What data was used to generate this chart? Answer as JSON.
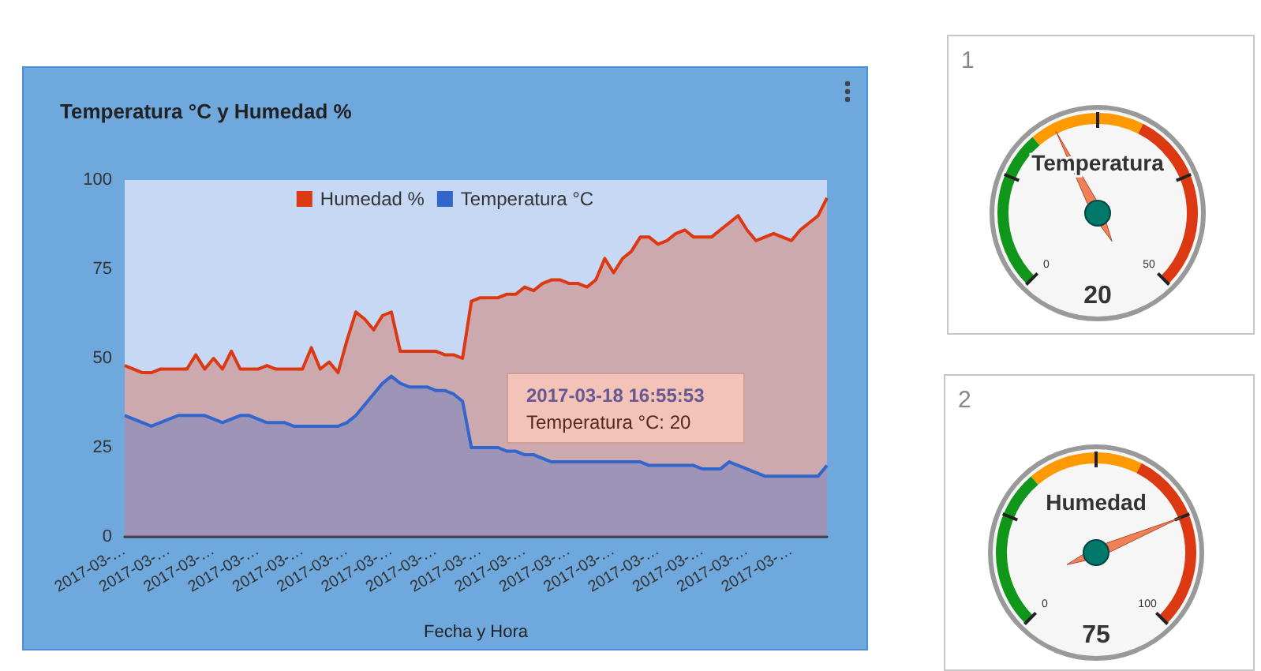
{
  "chart_data": [
    {
      "type": "area",
      "title": "Temperatura °C y Humedad %",
      "xlabel": "Fecha y Hora",
      "categories": [
        "2017-03-…",
        null,
        null,
        null,
        null,
        "2017-03-…",
        null,
        null,
        null,
        null,
        "2017-03-…",
        null,
        null,
        null,
        null,
        "2017-03-…",
        null,
        null,
        null,
        null,
        "2017-03-…",
        null,
        null,
        null,
        null,
        "2017-03-…",
        null,
        null,
        null,
        null,
        "2017-03-…",
        null,
        null,
        null,
        null,
        "2017-03-…",
        null,
        null,
        null,
        null,
        "2017-03-…",
        null,
        null,
        null,
        null,
        "2017-03-…",
        null,
        null,
        null,
        null,
        "2017-03-…",
        null,
        null,
        null,
        null,
        "2017-03-…",
        null,
        null,
        null,
        null,
        "2017-03-…",
        null,
        null,
        null,
        null,
        "2017-03-…",
        null,
        null,
        null,
        null,
        "2017-03-…",
        null,
        null,
        null,
        null,
        "2017-03-…",
        null,
        null,
        null,
        null
      ],
      "series": [
        {
          "name": "Humedad %",
          "color": "#dc3912",
          "values": [
            48,
            47,
            46,
            46,
            47,
            47,
            47,
            47,
            51,
            47,
            50,
            47,
            52,
            47,
            47,
            47,
            48,
            47,
            47,
            47,
            47,
            53,
            47,
            49,
            46,
            55,
            63,
            61,
            58,
            62,
            63,
            52,
            52,
            52,
            52,
            52,
            51,
            51,
            50,
            66,
            67,
            67,
            67,
            68,
            68,
            70,
            69,
            71,
            72,
            72,
            71,
            71,
            70,
            72,
            78,
            74,
            78,
            80,
            84,
            84,
            82,
            83,
            85,
            86,
            84,
            84,
            84,
            86,
            88,
            90,
            86,
            83,
            84,
            85,
            84,
            83,
            86,
            88,
            90,
            95
          ]
        },
        {
          "name": "Temperatura °C",
          "color": "#3366cc",
          "values": [
            34,
            33,
            32,
            31,
            32,
            33,
            34,
            34,
            34,
            34,
            33,
            32,
            33,
            34,
            34,
            33,
            32,
            32,
            32,
            31,
            31,
            31,
            31,
            31,
            31,
            32,
            34,
            37,
            40,
            43,
            45,
            43,
            42,
            42,
            42,
            41,
            41,
            40,
            38,
            25,
            25,
            25,
            25,
            24,
            24,
            23,
            23,
            22,
            21,
            21,
            21,
            21,
            21,
            21,
            21,
            21,
            21,
            21,
            21,
            20,
            20,
            20,
            20,
            20,
            20,
            19,
            19,
            19,
            21,
            20,
            19,
            18,
            17,
            17,
            17,
            17,
            17,
            17,
            17,
            20
          ]
        }
      ],
      "ylim": [
        0,
        100
      ],
      "yticks": [
        0,
        25,
        50,
        75,
        100
      ],
      "grid": false,
      "legend": "top",
      "marker": "none",
      "annotations": [
        "2017-03-18 16:55:53",
        "Temperatura °C: 20"
      ]
    },
    {
      "type": "other",
      "title": "Temperatura",
      "values": [
        20
      ],
      "data_labels": true,
      "annotations": [
        "1",
        "0",
        "50"
      ]
    },
    {
      "type": "other",
      "title": "Humedad",
      "values": [
        75
      ],
      "data_labels": true,
      "annotations": [
        "2",
        "0",
        "100"
      ]
    }
  ]
}
